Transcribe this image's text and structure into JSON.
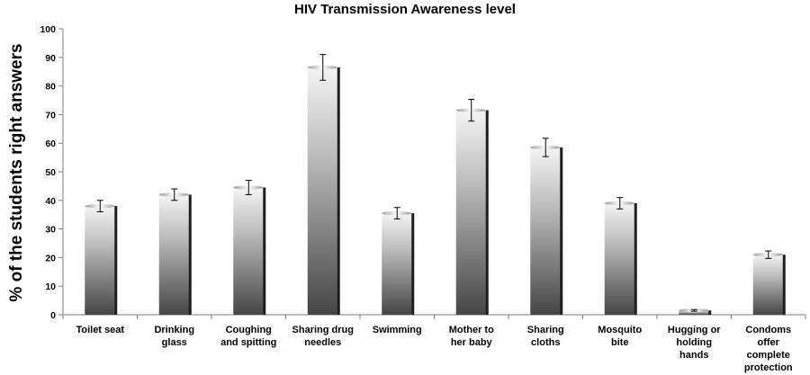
{
  "chart_data": {
    "type": "bar",
    "title": "HIV Transmission Awareness level",
    "xlabel": "",
    "ylabel": "% of the students right answers",
    "ylim": [
      0,
      100
    ],
    "yticks": [
      0,
      10,
      20,
      30,
      40,
      50,
      60,
      70,
      80,
      90,
      100
    ],
    "grid": false,
    "legend": "none",
    "categories": [
      [
        "Toilet seat"
      ],
      [
        "Drinking",
        "glass"
      ],
      [
        "Coughing",
        "and spitting"
      ],
      [
        "Sharing drug",
        "needles"
      ],
      [
        "Swimming"
      ],
      [
        "Mother to",
        "her baby"
      ],
      [
        "Sharing",
        "cloths"
      ],
      [
        "Mosquito",
        "bite"
      ],
      [
        "Hugging or",
        "holding",
        "hands"
      ],
      [
        "Condoms",
        "offer",
        "complete",
        "protection"
      ]
    ],
    "values": [
      38,
      42,
      44.5,
      86.5,
      35.5,
      71.5,
      58.5,
      39,
      1.5,
      21
    ],
    "error": [
      2,
      2,
      2.5,
      4.5,
      2,
      3.8,
      3.2,
      2,
      0.3,
      1.3
    ],
    "colors": {
      "bar_dark": "#4d4d4d",
      "bar_light": "#f2f2f2",
      "bar_side": "#1e1e1e",
      "axis": "#7f7f7f"
    }
  }
}
